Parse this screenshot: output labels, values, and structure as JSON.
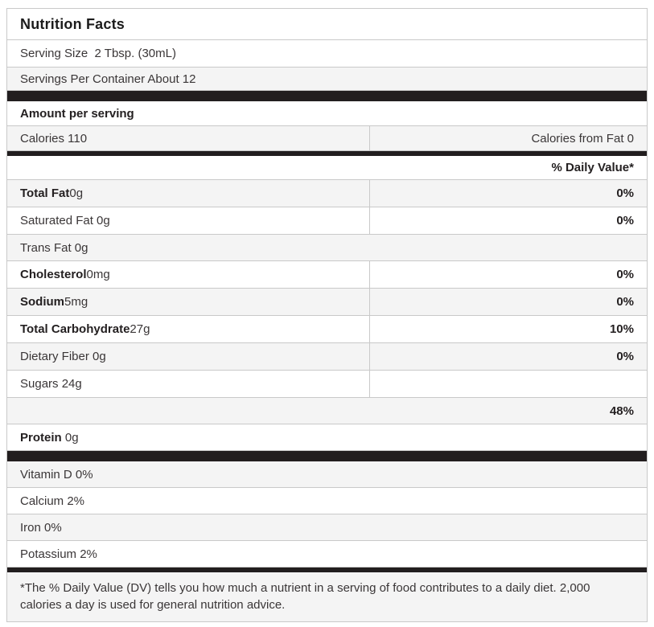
{
  "colors": {
    "bar": "#221e1f",
    "shade": "#f4f4f4",
    "border": "#c9c9c9",
    "text": "#3a3637",
    "bold_text": "#242021",
    "background": "#ffffff"
  },
  "label": {
    "title": "Nutrition Facts",
    "serving_size": "Serving Size  2 Tbsp. (30mL)",
    "servings_per_container": "Servings Per Container About 12",
    "amount_per_serving": "Amount per serving",
    "calories": "Calories 110",
    "calories_from_fat": "Calories from Fat 0",
    "daily_value_header": "% Daily Value*",
    "nutrients": [
      {
        "name": "total-fat",
        "bold": "Total Fat",
        "rest": " 0g",
        "pct": "0%",
        "shade": true,
        "divider": true
      },
      {
        "name": "saturated-fat",
        "bold": "",
        "rest": "Saturated Fat 0g",
        "pct": "0%",
        "shade": false,
        "divider": true
      },
      {
        "name": "trans-fat",
        "bold": "",
        "rest": "Trans Fat 0g",
        "pct": "",
        "shade": true,
        "divider": false
      },
      {
        "name": "cholesterol",
        "bold": "Cholesterol",
        "rest": " 0mg",
        "pct": "0%",
        "shade": false,
        "divider": true
      },
      {
        "name": "sodium",
        "bold": "Sodium",
        "rest": " 5mg",
        "pct": "0%",
        "shade": true,
        "divider": true
      },
      {
        "name": "total-carbohydrate",
        "bold": "Total Carbohydrate",
        "rest": " 27g",
        "pct": "10%",
        "shade": false,
        "divider": true
      },
      {
        "name": "dietary-fiber",
        "bold": "",
        "rest": "Dietary Fiber 0g",
        "pct": "0%",
        "shade": true,
        "divider": true
      },
      {
        "name": "sugars",
        "bold": "",
        "rest": "Sugars 24g",
        "pct": "",
        "shade": false,
        "divider": true
      },
      {
        "name": "sugars-daily-value",
        "bold": "",
        "rest": "",
        "pct": "48%",
        "shade": true,
        "divider": false
      },
      {
        "name": "protein",
        "bold": "Protein",
        "rest": " 0g",
        "pct": "",
        "shade": false,
        "divider": false
      }
    ],
    "micronutrients": [
      {
        "name": "vitamin-d",
        "text": "Vitamin D 0%",
        "shade": true
      },
      {
        "name": "calcium",
        "text": "Calcium 2%",
        "shade": false
      },
      {
        "name": "iron",
        "text": "Iron 0%",
        "shade": true
      },
      {
        "name": "potassium",
        "text": "Potassium 2%",
        "shade": false
      }
    ],
    "footnote": "*The % Daily Value (DV) tells you how much a nutrient in a serving of food contributes to a daily diet. 2,000 calories a day is used for general nutrition advice."
  }
}
